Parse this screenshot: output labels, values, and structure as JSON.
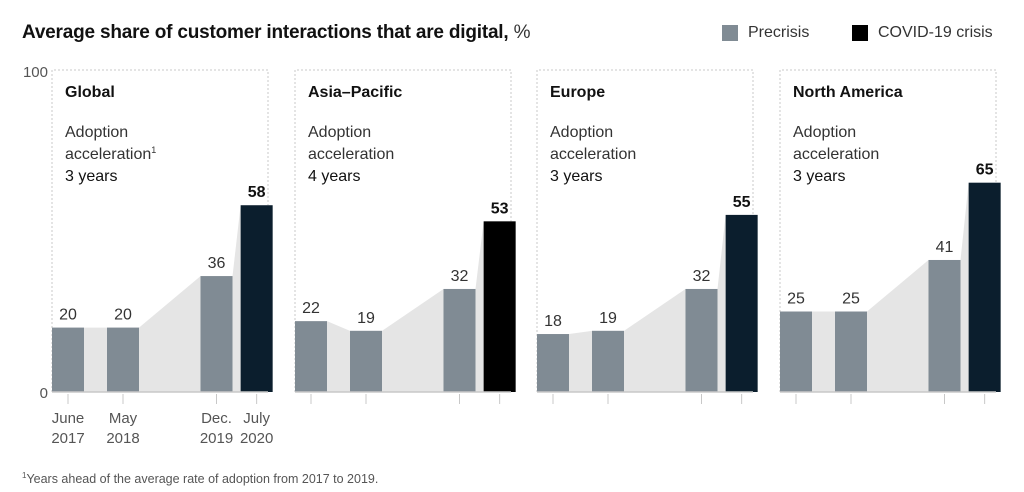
{
  "title": "Average share of customer interactions that are digital,",
  "title_unit": "%",
  "legend": [
    {
      "label": "Precrisis",
      "color": "#808b94"
    },
    {
      "label": "COVID-19 crisis",
      "color": "#0b1e2d"
    }
  ],
  "footnote_marker": "1",
  "footnote": "Years ahead of the average rate of adoption from 2017 to 2019.",
  "chart_data": {
    "type": "bar",
    "title": "Average share of customer interactions that are digital, %",
    "ylabel": "%",
    "ylim": [
      0,
      100
    ],
    "yticks": [
      "0",
      "100"
    ],
    "categories": [
      {
        "line1": "June",
        "line2": "2017"
      },
      {
        "line1": "May",
        "line2": "2018"
      },
      {
        "line1": "Dec.",
        "line2": "2019"
      },
      {
        "line1": "July",
        "line2": "2020"
      }
    ],
    "category_positions": [
      0,
      1,
      2.7,
      3.43
    ],
    "series_by_period": [
      "Precrisis",
      "Precrisis",
      "Precrisis",
      "COVID-19 crisis"
    ],
    "panels": [
      {
        "name": "Global",
        "subtitle1": "Adoption",
        "subtitle2": "acceleration",
        "footnote_ref": "1",
        "acceleration": "3 years",
        "values": [
          20,
          20,
          36,
          58
        ],
        "crisis_color": "#0b1e2d"
      },
      {
        "name": "Asia–Pacific",
        "subtitle1": "Adoption",
        "subtitle2": "acceleration",
        "footnote_ref": "",
        "acceleration": "4 years",
        "values": [
          22,
          19,
          32,
          53
        ],
        "crisis_color": "#000000"
      },
      {
        "name": "Europe",
        "subtitle1": "Adoption",
        "subtitle2": "acceleration",
        "footnote_ref": "",
        "acceleration": "3 years",
        "values": [
          18,
          19,
          32,
          55
        ],
        "crisis_color": "#0b1e2d"
      },
      {
        "name": "North America",
        "subtitle1": "Adoption",
        "subtitle2": "acceleration",
        "footnote_ref": "",
        "acceleration": "3 years",
        "values": [
          25,
          25,
          41,
          65
        ],
        "crisis_color": "#0b1e2d"
      }
    ],
    "colors": {
      "precrisis": "#808b94",
      "area": "#e5e5e5",
      "frame": "#c8c8c8"
    }
  }
}
